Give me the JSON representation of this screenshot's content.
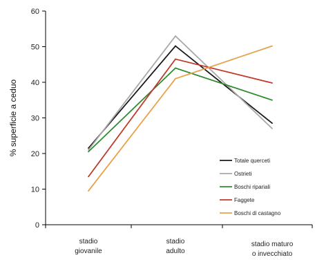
{
  "chart_data": {
    "type": "line",
    "ylabel": "% superficie a ceduo",
    "xlabel": "",
    "ylim": [
      0,
      60
    ],
    "yticks": [
      0,
      10,
      20,
      30,
      40,
      50,
      60
    ],
    "grid": false,
    "legend_position": "bottom-right",
    "categories": [
      [
        "stadio",
        "giovanile"
      ],
      [
        "stadio",
        "adulto"
      ],
      [
        "stadio maturo",
        "o invecchiato"
      ]
    ],
    "series": [
      {
        "name": "Totale querceti",
        "color": "#1a1a1a",
        "values": [
          21.5,
          50.2,
          28.5
        ]
      },
      {
        "name": "Ostrieti",
        "color": "#a8a8a8",
        "values": [
          21.0,
          53.0,
          27.0
        ]
      },
      {
        "name": "Boschi ripariali",
        "color": "#2e8b2e",
        "values": [
          20.5,
          44.0,
          35.0
        ]
      },
      {
        "name": "Faggete",
        "color": "#c0392b",
        "values": [
          13.5,
          46.5,
          39.8
        ]
      },
      {
        "name": "Boschi di castagno",
        "color": "#e8a04a",
        "values": [
          9.5,
          41.0,
          50.2
        ]
      }
    ]
  }
}
